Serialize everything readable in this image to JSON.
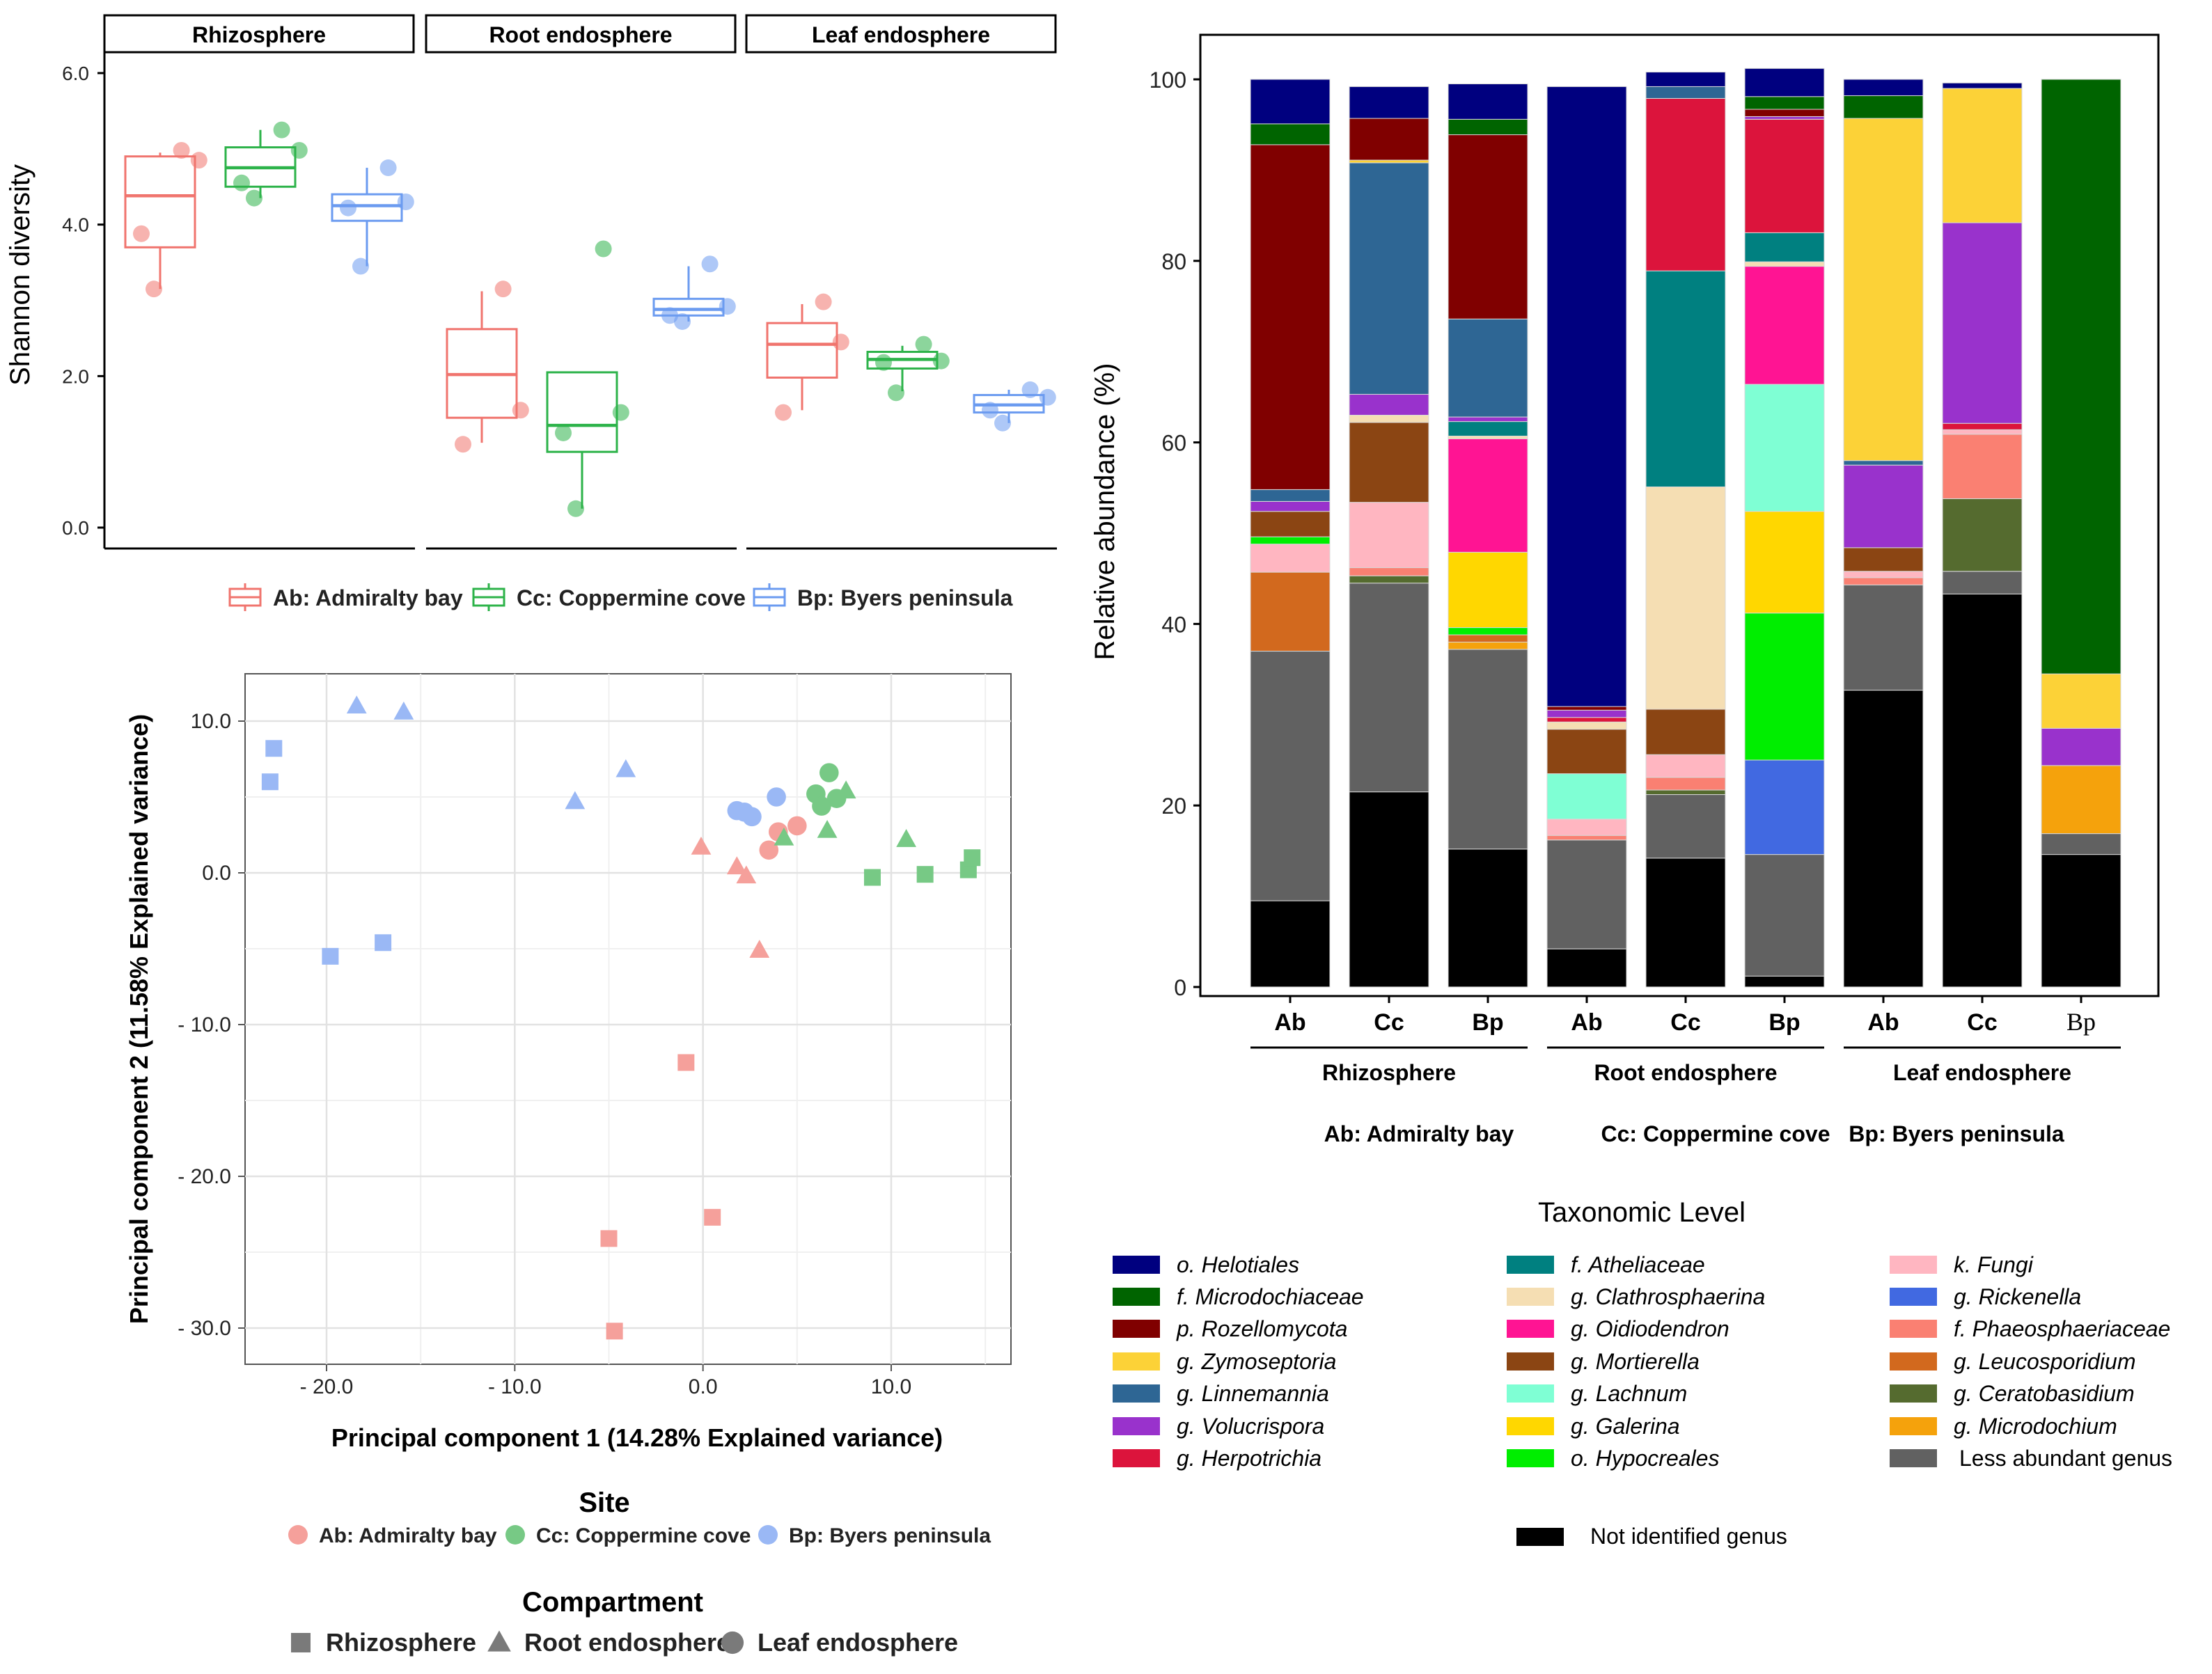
{
  "chart_data": [
    {
      "type": "boxplot",
      "ylabel": "Shannon diversity",
      "ylim": [
        0,
        6.3
      ],
      "yticks": [
        "0.0",
        "2.0",
        "4.0",
        "6.0"
      ],
      "facets": [
        "Rhizosphere",
        "Root endosphere",
        "Leaf endosphere"
      ],
      "legend": [
        "Ab: Admiralty bay",
        "Cc: Coppermine cove",
        "Bp: Byers peninsula"
      ],
      "colors": [
        "#f0746e",
        "#2db34a",
        "#6b9bf0"
      ],
      "groups": [
        {
          "facet": 0,
          "site": 0,
          "q1": 3.7,
          "median": 4.38,
          "q3": 4.9,
          "low": 3.15,
          "high": 4.95,
          "points": [
            4.98,
            4.85,
            3.88,
            3.15
          ]
        },
        {
          "facet": 0,
          "site": 1,
          "q1": 4.5,
          "median": 4.75,
          "q3": 5.02,
          "low": 4.35,
          "high": 5.25,
          "points": [
            5.25,
            4.98,
            4.55,
            4.35
          ]
        },
        {
          "facet": 0,
          "site": 2,
          "q1": 4.05,
          "median": 4.25,
          "q3": 4.4,
          "low": 3.45,
          "high": 4.75,
          "points": [
            4.75,
            4.3,
            4.22,
            3.45
          ]
        },
        {
          "facet": 1,
          "site": 0,
          "q1": 1.45,
          "median": 2.02,
          "q3": 2.62,
          "low": 1.12,
          "high": 3.12,
          "points": [
            3.15,
            1.55,
            1.1
          ]
        },
        {
          "facet": 1,
          "site": 1,
          "q1": 1.0,
          "median": 1.35,
          "q3": 2.05,
          "low": 0.25,
          "high": 2.05,
          "points": [
            3.68,
            1.52,
            1.25,
            0.25
          ]
        },
        {
          "facet": 1,
          "site": 2,
          "q1": 2.8,
          "median": 2.88,
          "q3": 3.02,
          "low": 2.72,
          "high": 3.45,
          "points": [
            3.48,
            2.92,
            2.8,
            2.72
          ]
        },
        {
          "facet": 2,
          "site": 0,
          "q1": 1.98,
          "median": 2.42,
          "q3": 2.7,
          "low": 1.55,
          "high": 2.95,
          "points": [
            2.98,
            2.45,
            1.52
          ]
        },
        {
          "facet": 2,
          "site": 1,
          "q1": 2.1,
          "median": 2.22,
          "q3": 2.32,
          "low": 1.8,
          "high": 2.4,
          "points": [
            2.42,
            2.2,
            2.18,
            1.78
          ]
        },
        {
          "facet": 2,
          "site": 2,
          "q1": 1.52,
          "median": 1.62,
          "q3": 1.75,
          "low": 1.38,
          "high": 1.82,
          "points": [
            1.82,
            1.72,
            1.55,
            1.38
          ]
        }
      ]
    },
    {
      "type": "scatter",
      "xlabel": "Principal component 1 (14.28% Explained variance)",
      "ylabel": "Principal component 2 (11.58% Explained variance)",
      "xlim": [
        -24,
        15
      ],
      "ylim": [
        -32,
        12.5
      ],
      "xticks": [
        {
          "v": -20,
          "t": "- 20.0"
        },
        {
          "v": -10,
          "t": "- 10.0"
        },
        {
          "v": 0,
          "t": "0.0"
        },
        {
          "v": 10,
          "t": "10.0"
        }
      ],
      "yticks": [
        {
          "v": 10,
          "t": "10.0"
        },
        {
          "v": 0,
          "t": "0.0"
        },
        {
          "v": -10,
          "t": "- 10.0"
        },
        {
          "v": -20,
          "t": "- 20.0"
        },
        {
          "v": -30,
          "t": "- 30.0"
        }
      ],
      "site_legend_title": "Site",
      "sites": [
        "Ab: Admiralty bay",
        "Cc: Coppermine cove",
        "Bp: Byers peninsula"
      ],
      "site_colors": [
        "#f5a09b",
        "#77c985",
        "#9ab8f5"
      ],
      "compartment_legend_title": "Compartment",
      "compartments": [
        "Rhizosphere",
        "Root endosphere",
        "Leaf endosphere"
      ],
      "points": [
        {
          "x": -22.8,
          "y": 8.2,
          "site": 2,
          "comp": 0
        },
        {
          "x": -23.0,
          "y": 6.0,
          "site": 2,
          "comp": 0
        },
        {
          "x": -19.8,
          "y": -5.5,
          "site": 2,
          "comp": 0
        },
        {
          "x": -17.0,
          "y": -4.6,
          "site": 2,
          "comp": 0
        },
        {
          "x": -18.4,
          "y": 11.0,
          "site": 2,
          "comp": 1
        },
        {
          "x": -15.9,
          "y": 10.6,
          "site": 2,
          "comp": 1
        },
        {
          "x": -4.1,
          "y": 6.8,
          "site": 2,
          "comp": 1
        },
        {
          "x": -6.8,
          "y": 4.7,
          "site": 2,
          "comp": 1
        },
        {
          "x": 1.8,
          "y": 4.1,
          "site": 2,
          "comp": 2
        },
        {
          "x": 2.2,
          "y": 4.0,
          "site": 2,
          "comp": 2
        },
        {
          "x": 2.6,
          "y": 3.7,
          "site": 2,
          "comp": 2
        },
        {
          "x": 3.9,
          "y": 5.0,
          "site": 2,
          "comp": 2
        },
        {
          "x": -0.9,
          "y": -12.5,
          "site": 0,
          "comp": 0
        },
        {
          "x": 0.5,
          "y": -22.7,
          "site": 0,
          "comp": 0
        },
        {
          "x": -5.0,
          "y": -24.1,
          "site": 0,
          "comp": 0
        },
        {
          "x": -4.7,
          "y": -30.2,
          "site": 0,
          "comp": 0
        },
        {
          "x": -0.1,
          "y": 1.7,
          "site": 0,
          "comp": 1
        },
        {
          "x": 1.8,
          "y": 0.4,
          "site": 0,
          "comp": 1
        },
        {
          "x": 2.3,
          "y": -0.2,
          "site": 0,
          "comp": 1
        },
        {
          "x": 3.0,
          "y": -5.1,
          "site": 0,
          "comp": 1
        },
        {
          "x": 3.5,
          "y": 1.5,
          "site": 0,
          "comp": 2
        },
        {
          "x": 4.0,
          "y": 2.7,
          "site": 0,
          "comp": 2
        },
        {
          "x": 5.0,
          "y": 3.1,
          "site": 0,
          "comp": 2
        },
        {
          "x": 9.0,
          "y": -0.3,
          "site": 1,
          "comp": 0
        },
        {
          "x": 11.8,
          "y": -0.1,
          "site": 1,
          "comp": 0
        },
        {
          "x": 14.1,
          "y": 0.2,
          "site": 1,
          "comp": 0
        },
        {
          "x": 14.3,
          "y": 1.0,
          "site": 1,
          "comp": 0
        },
        {
          "x": 4.3,
          "y": 2.3,
          "site": 1,
          "comp": 1
        },
        {
          "x": 6.6,
          "y": 2.8,
          "site": 1,
          "comp": 1
        },
        {
          "x": 7.6,
          "y": 5.4,
          "site": 1,
          "comp": 1
        },
        {
          "x": 10.8,
          "y": 2.2,
          "site": 1,
          "comp": 1
        },
        {
          "x": 6.0,
          "y": 5.2,
          "site": 1,
          "comp": 2
        },
        {
          "x": 6.7,
          "y": 6.6,
          "site": 1,
          "comp": 2
        },
        {
          "x": 7.1,
          "y": 4.9,
          "site": 1,
          "comp": 2
        },
        {
          "x": 6.3,
          "y": 4.4,
          "site": 1,
          "comp": 2
        }
      ]
    },
    {
      "type": "stacked-bar",
      "ylabel": "Relative abundance (%)",
      "ylim": [
        0,
        100
      ],
      "yticks": [
        "0",
        "20",
        "40",
        "60",
        "80",
        "100"
      ],
      "categories": [
        "Ab",
        "Cc",
        "Bp",
        "Ab",
        "Cc",
        "Bp",
        "Ab",
        "Cc",
        "Bp"
      ],
      "groups": [
        "Rhizosphere",
        "Root endosphere",
        "Leaf endosphere"
      ],
      "site_notes": [
        "Ab: Admiralty bay",
        "Cc: Coppermine cove",
        "Bp: Byers peninsula"
      ],
      "legend_title": "Taxonomic Level",
      "taxa": [
        {
          "name": "Not identified genus",
          "color": "#000000",
          "italic": false,
          "values": [
            9.5,
            21.5,
            15.2,
            4.2,
            14.2,
            1.2,
            32.7,
            43.3,
            14.6
          ]
        },
        {
          "name": "Less abundant genus",
          "color": "#616161",
          "italic": false,
          "values": [
            27.5,
            23.0,
            22.0,
            12.0,
            7.0,
            13.4,
            11.6,
            2.5,
            2.3
          ]
        },
        {
          "name": "g. Microdochium",
          "color": "#f5a20c",
          "italic": true,
          "values": [
            0,
            0,
            0.8,
            0,
            0,
            0,
            0,
            0,
            7.5
          ]
        },
        {
          "name": "g. Ceratobasidium",
          "color": "#556b2f",
          "italic": true,
          "values": [
            0,
            0.8,
            0,
            0,
            0.5,
            0,
            0,
            8.0,
            0
          ]
        },
        {
          "name": "g. Leucosporidium",
          "color": "#d2691e",
          "italic": true,
          "values": [
            8.7,
            0,
            0.8,
            0,
            0,
            0,
            0,
            0,
            0
          ]
        },
        {
          "name": "f. Phaeosphaeriaceae",
          "color": "#fa8072",
          "italic": true,
          "values": [
            0,
            0.9,
            0,
            0.5,
            1.4,
            0,
            0.8,
            7.1,
            0
          ]
        },
        {
          "name": "g. Rickenella",
          "color": "#4169e1",
          "italic": true,
          "values": [
            0,
            0,
            0,
            0,
            0,
            10.4,
            0,
            0,
            0
          ]
        },
        {
          "name": "k. Fungi",
          "color": "#ffb6c1",
          "italic": true,
          "values": [
            3.1,
            7.2,
            0,
            1.8,
            2.5,
            0,
            0.7,
            0.5,
            0
          ]
        },
        {
          "name": "o. Hypocreales",
          "color": "#00ee00",
          "italic": true,
          "values": [
            0.8,
            0,
            0.8,
            0,
            0,
            16.2,
            0,
            0,
            0
          ]
        },
        {
          "name": "g. Galerina",
          "color": "#ffd700",
          "italic": true,
          "values": [
            0,
            0,
            8.3,
            0,
            0,
            11.2,
            0,
            0,
            0
          ]
        },
        {
          "name": "g. Lachnum",
          "color": "#7fffd4",
          "italic": true,
          "values": [
            0,
            0,
            0,
            5.0,
            0,
            14.0,
            0,
            0,
            0
          ]
        },
        {
          "name": "g. Mortierella",
          "color": "#8b4513",
          "italic": true,
          "values": [
            2.8,
            8.8,
            0,
            4.9,
            5.0,
            0,
            2.6,
            0,
            0
          ]
        },
        {
          "name": "g. Oidiodendron",
          "color": "#ff1493",
          "italic": true,
          "values": [
            0,
            0,
            12.5,
            0,
            0,
            13.0,
            0,
            0,
            0
          ]
        },
        {
          "name": "g. Clathrosphaerina",
          "color": "#f5deb3",
          "italic": true,
          "values": [
            0,
            0.8,
            0.3,
            0.8,
            24.5,
            0.5,
            0,
            0,
            0
          ]
        },
        {
          "name": "f. Atheliaceae",
          "color": "#008080",
          "italic": true,
          "values": [
            0,
            0,
            1.6,
            0,
            23.8,
            3.2,
            0,
            0,
            0
          ]
        },
        {
          "name": "g. Herpotrichia",
          "color": "#dc143c",
          "italic": true,
          "values": [
            0,
            0,
            0,
            0.5,
            19.0,
            12.5,
            0,
            0.7,
            0
          ]
        },
        {
          "name": "g. Volucrispora",
          "color": "#9932cc",
          "italic": true,
          "values": [
            1.1,
            2.3,
            0.5,
            0.8,
            0,
            0.3,
            9.1,
            22.1,
            4.1
          ]
        },
        {
          "name": "g. Linnemannia",
          "color": "#2e6694",
          "italic": true,
          "values": [
            1.3,
            25.5,
            10.8,
            0,
            1.3,
            0,
            0.5,
            0,
            0
          ]
        },
        {
          "name": "g. Zymoseptoria",
          "color": "#fcd237",
          "italic": true,
          "values": [
            0,
            0.3,
            0,
            0,
            0,
            0,
            37.7,
            14.8,
            6.0
          ]
        },
        {
          "name": "p. Rozellomycota",
          "color": "#800000",
          "italic": true,
          "values": [
            38.0,
            4.6,
            20.3,
            0.4,
            0,
            0.8,
            0,
            0,
            0
          ]
        },
        {
          "name": "f. Microdochiaceae",
          "color": "#006400",
          "italic": true,
          "values": [
            2.3,
            0,
            1.7,
            0,
            0,
            1.4,
            2.5,
            0,
            65.5
          ]
        },
        {
          "name": "o. Helotiales",
          "color": "#00007f",
          "italic": true,
          "values": [
            4.9,
            3.5,
            3.9,
            68.3,
            1.6,
            3.1,
            1.8,
            0.6,
            0
          ]
        }
      ],
      "legend_columns": [
        [
          "o. Helotiales",
          "f. Microdochiaceae",
          "p. Rozellomycota",
          "g. Zymoseptoria",
          "g. Linnemannia",
          "g. Volucrispora",
          "g. Herpotrichia"
        ],
        [
          "f. Atheliaceae",
          "g. Clathrosphaerina",
          "g. Oidiodendron",
          "g. Mortierella",
          "g. Lachnum",
          "g. Galerina",
          "o. Hypocreales"
        ],
        [
          "k. Fungi",
          "g. Rickenella",
          "f. Phaeosphaeriaceae",
          "g. Leucosporidium",
          "g. Ceratobasidium",
          "g. Microdochium",
          "Less abundant genus"
        ]
      ],
      "legend_extra": "Not identified genus"
    }
  ]
}
